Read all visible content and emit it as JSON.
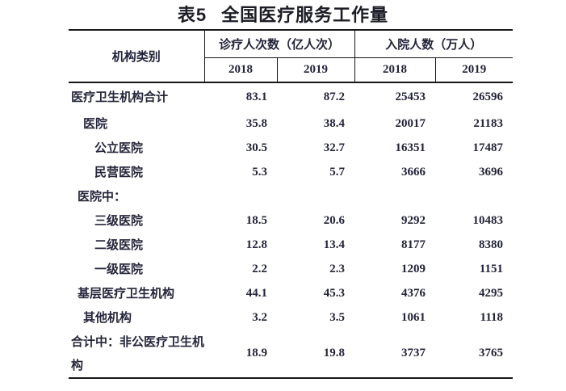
{
  "title": {
    "label": "表5",
    "text": "全国医疗服务工作量"
  },
  "table": {
    "org_header": "机构类别",
    "groups": [
      {
        "label": "诊疗人次数（亿人次）",
        "years": [
          "2018",
          "2019"
        ]
      },
      {
        "label": "入院人数（万人）",
        "years": [
          "2018",
          "2019"
        ]
      }
    ],
    "rows": [
      {
        "label": "医疗卫生机构合计",
        "values": [
          "83.1",
          "87.2",
          "25453",
          "26596"
        ]
      },
      {
        "label": "医院",
        "values": [
          "35.8",
          "38.4",
          "20017",
          "21183"
        ]
      },
      {
        "label": "公立医院",
        "values": [
          "30.5",
          "32.7",
          "16351",
          "17487"
        ]
      },
      {
        "label": "民营医院",
        "values": [
          "5.3",
          "5.7",
          "3666",
          "3696"
        ]
      },
      {
        "label": "医院中：",
        "values": [
          "",
          "",
          "",
          ""
        ]
      },
      {
        "label": "三级医院",
        "values": [
          "18.5",
          "20.6",
          "9292",
          "10483"
        ]
      },
      {
        "label": "二级医院",
        "values": [
          "12.8",
          "13.4",
          "8177",
          "8380"
        ]
      },
      {
        "label": "一级医院",
        "values": [
          "2.2",
          "2.3",
          "1209",
          "1151"
        ]
      },
      {
        "label": "基层医疗卫生机构",
        "values": [
          "44.1",
          "45.3",
          "4376",
          "4295"
        ]
      },
      {
        "label": "其他机构",
        "values": [
          "3.2",
          "3.5",
          "1061",
          "1118"
        ]
      },
      {
        "label": "合计中：非公医疗卫生机构",
        "values": [
          "18.9",
          "19.8",
          "3737",
          "3765"
        ]
      }
    ]
  }
}
